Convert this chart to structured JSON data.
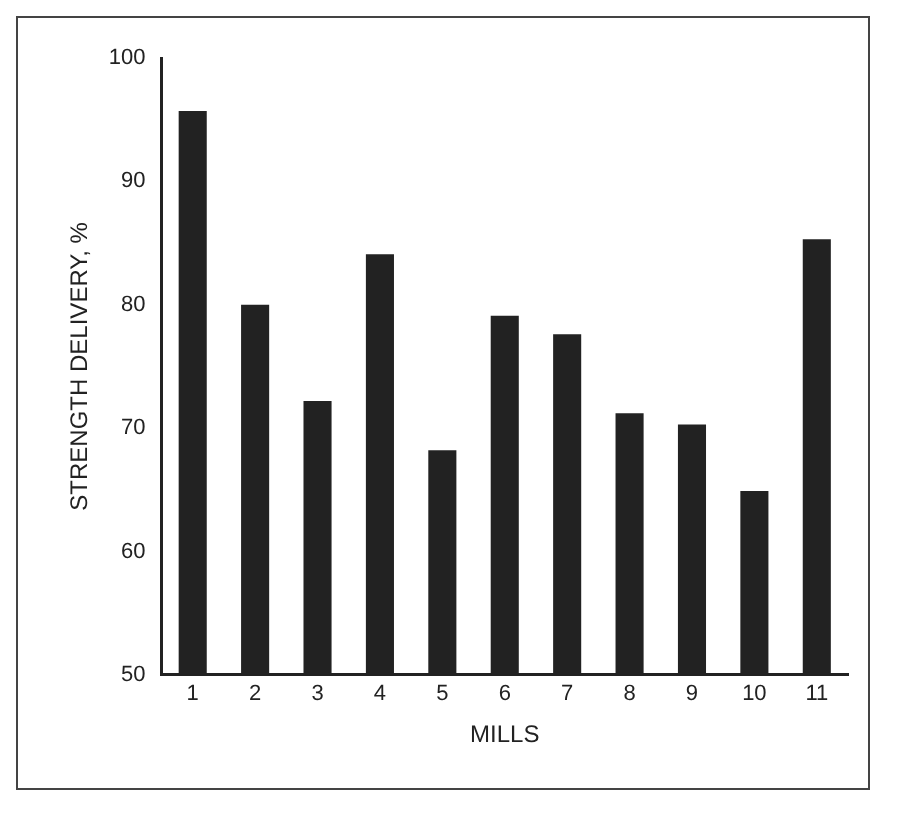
{
  "chart_data": {
    "type": "bar",
    "xlabel": "MILLS",
    "ylabel": "STRENGTH DELIVERY, %",
    "categories": [
      "1",
      "2",
      "3",
      "4",
      "5",
      "6",
      "7",
      "8",
      "9",
      "10",
      "11"
    ],
    "values": [
      95.7,
      80,
      72.2,
      84.1,
      68.2,
      79.1,
      77.6,
      71.2,
      70.3,
      64.9,
      85.3
    ],
    "color": "#222222",
    "ylim": [
      50,
      100
    ],
    "yticks": [
      50,
      60,
      70,
      80,
      90,
      100
    ],
    "grid": false,
    "legend": false
  }
}
